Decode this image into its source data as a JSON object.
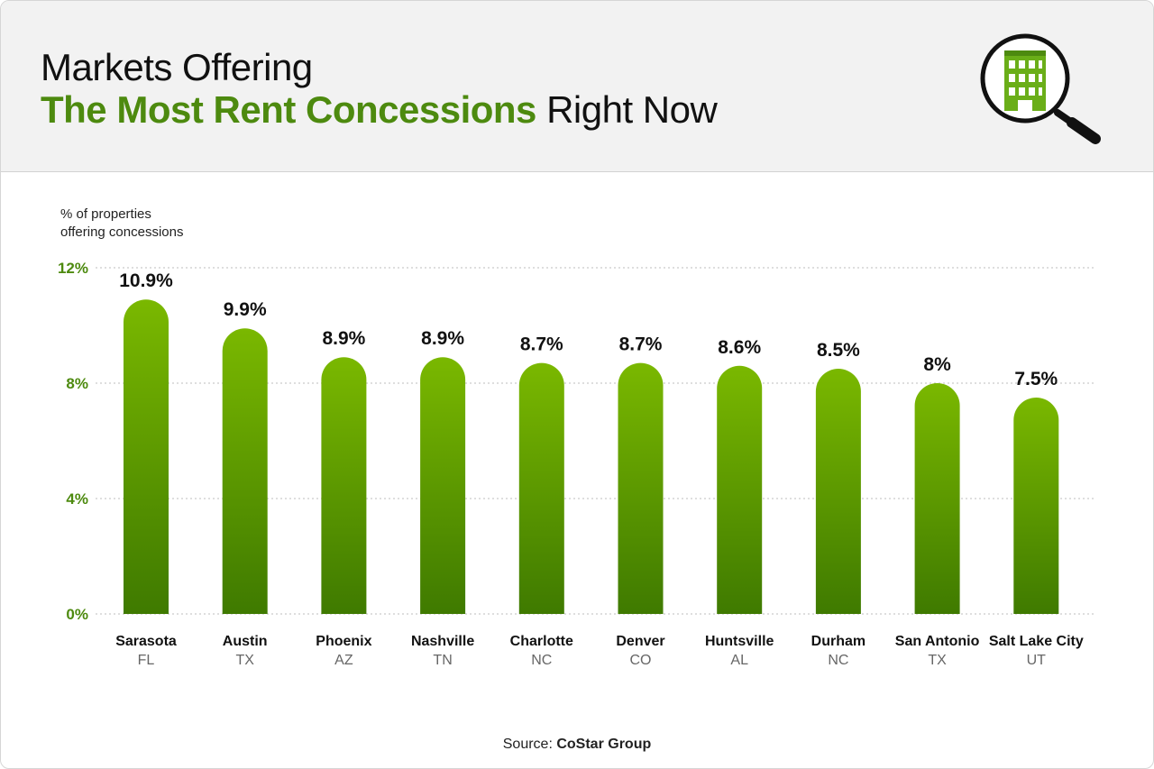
{
  "header": {
    "title_line1": "Markets Offering",
    "title_highlight": "The Most Rent Concessions",
    "title_rest": "Right Now",
    "icon": "building-magnifier-icon"
  },
  "colors": {
    "accent": "#4d8a0f",
    "bar_top": "#7ab800",
    "bar_bottom": "#3f7a00",
    "header_bg": "#f2f2f2"
  },
  "chart_data": {
    "type": "bar",
    "ylabel_line1": "% of properties",
    "ylabel_line2": "offering concessions",
    "yticks": [
      "0%",
      "4%",
      "8%",
      "12%"
    ],
    "ytick_values": [
      0,
      4,
      8,
      12
    ],
    "ylim": [
      0,
      12
    ],
    "grid": true,
    "categories": [
      "Sarasota",
      "Austin",
      "Phoenix",
      "Nashville",
      "Charlotte",
      "Denver",
      "Huntsville",
      "Durham",
      "San Antonio",
      "Salt Lake City"
    ],
    "subcategories": [
      "FL",
      "TX",
      "AZ",
      "TN",
      "NC",
      "CO",
      "AL",
      "NC",
      "TX",
      "UT"
    ],
    "values": [
      10.9,
      9.9,
      8.9,
      8.9,
      8.7,
      8.7,
      8.6,
      8.5,
      8.0,
      7.5
    ],
    "value_labels": [
      "10.9%",
      "9.9%",
      "8.9%",
      "8.9%",
      "8.7%",
      "8.7%",
      "8.6%",
      "8.5%",
      "8%",
      "7.5%"
    ]
  },
  "source": {
    "prefix": "Source:",
    "name": "CoStar Group"
  }
}
